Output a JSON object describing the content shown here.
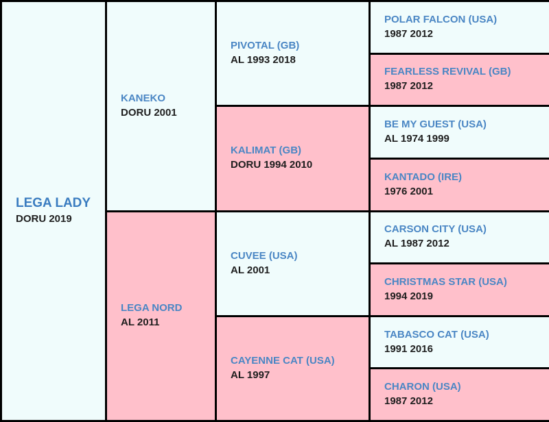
{
  "subject": {
    "name": "LEGA LADY",
    "info": "DORU 2019"
  },
  "sire": {
    "name": "KANEKO",
    "info": "DORU 2001"
  },
  "dam": {
    "name": "LEGA NORD",
    "info": "AL 2011"
  },
  "grandparents": [
    {
      "name": "PIVOTAL (GB)",
      "info": "AL 1993 2018"
    },
    {
      "name": "KALIMAT (GB)",
      "info": "DORU 1994 2010"
    },
    {
      "name": "CUVEE (USA)",
      "info": "AL 2001"
    },
    {
      "name": "CAYENNE CAT (USA)",
      "info": "AL 1997"
    }
  ],
  "great_grandparents": [
    {
      "name": "POLAR FALCON (USA)",
      "info": "1987 2012"
    },
    {
      "name": "FEARLESS REVIVAL (GB)",
      "info": "1987 2012"
    },
    {
      "name": "BE MY GUEST (USA)",
      "info": "AL 1974 1999"
    },
    {
      "name": "KANTADO (IRE)",
      "info": "1976 2001"
    },
    {
      "name": "CARSON CITY (USA)",
      "info": "AL 1987 2012"
    },
    {
      "name": "CHRISTMAS STAR (USA)",
      "info": "1994 2019"
    },
    {
      "name": "TABASCO CAT (USA)",
      "info": "1991 2016"
    },
    {
      "name": "CHARON (USA)",
      "info": "1987 2012"
    }
  ],
  "colors": {
    "male_bg": "#f0fcfc",
    "female_bg": "#ffc0cb",
    "name_text": "#4a86c4",
    "info_text": "#1e1e1e",
    "grid": "#000000"
  }
}
